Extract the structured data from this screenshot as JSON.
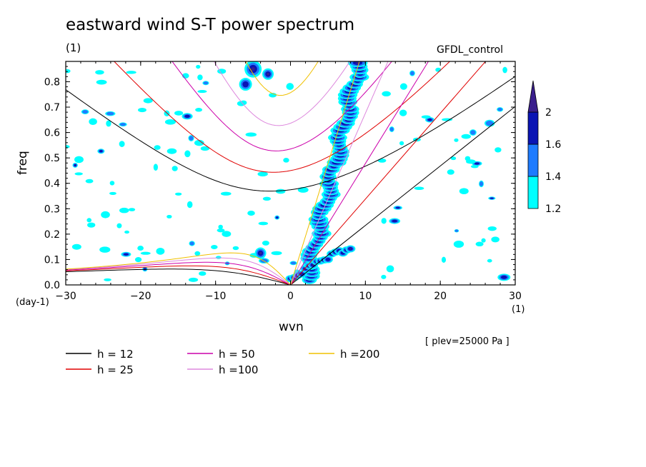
{
  "chart_data": {
    "type": "heatmap",
    "title": "eastward wind S-T power spectrum",
    "subtitle_left": "(1)",
    "subtitle_right": "GFDL_control",
    "xlabel": "wvn",
    "ylabel": "freq",
    "x_unit": "(1)",
    "y_unit": "(day-1)",
    "note": "[ plev=25000 Pa ]",
    "xlim": [
      -30,
      30
    ],
    "ylim": [
      0,
      0.88
    ],
    "x_ticks": [
      -30,
      -20,
      -10,
      0,
      10,
      20,
      30
    ],
    "y_ticks": [
      0.0,
      0.1,
      0.2,
      0.3,
      0.4,
      0.5,
      0.6,
      0.7,
      0.8
    ],
    "colorbar": {
      "levels": [
        1.2,
        1.4,
        1.6,
        2
      ],
      "colors": [
        "#00ffff",
        "#1e7bff",
        "#0a14b4",
        "#3a1e8c"
      ]
    },
    "series": [
      {
        "name": "h = 12",
        "color": "#000000",
        "equivalent_depth": 12
      },
      {
        "name": "h = 25",
        "color": "#e00000",
        "equivalent_depth": 25
      },
      {
        "name": "h = 50",
        "color": "#cc00aa",
        "equivalent_depth": 50
      },
      {
        "name": "h =100",
        "color": "#dd88dd",
        "equivalent_depth": 100
      },
      {
        "name": "h =200",
        "color": "#f0c000",
        "equivalent_depth": 200
      }
    ],
    "spectral_ridges": [
      {
        "wvn_range": [
          4,
          10
        ],
        "freq_range": [
          0.0,
          0.88
        ]
      },
      {
        "wvn_range": [
          -5,
          -2
        ],
        "freq_range": [
          0.1,
          0.14
        ]
      }
    ],
    "grid": false,
    "legend_position": "bottom"
  }
}
